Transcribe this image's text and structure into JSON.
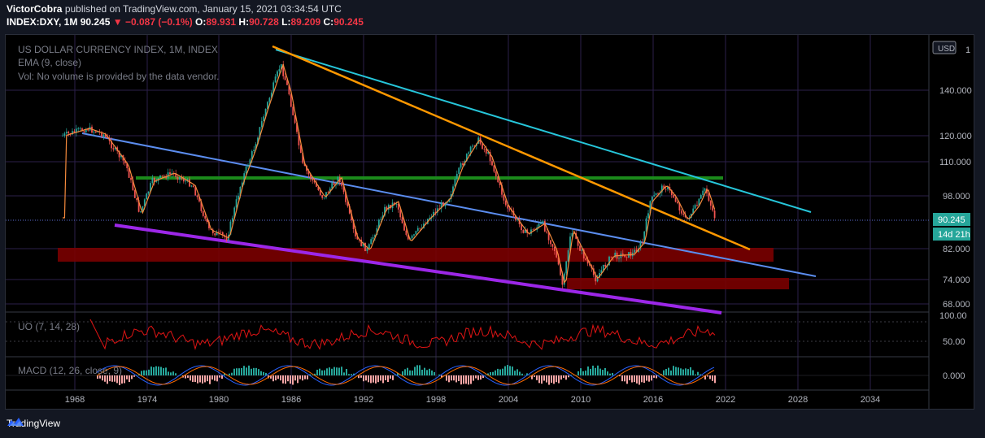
{
  "header": {
    "author": "VictorCobra",
    "published_text": "published on TradingView.com, January 15, 2021 03:34:54 UTC",
    "symbol": "INDEX:DXY, 1M",
    "last": "90.245",
    "change": "▼ −0.087 (−0.1%)",
    "o_label": "O:",
    "o_value": "89.931",
    "h_label": "H:",
    "h_value": "90.728",
    "l_label": "L:",
    "l_value": "89.209",
    "c_label": "C:",
    "c_value": "90.245"
  },
  "legend": {
    "title": "US DOLLAR CURRENCY INDEX, 1M, INDEX",
    "ema": "EMA (9, close)",
    "vol": "Vol: No volume is provided by the data vendor.",
    "uo": "UO (7, 14, 28)",
    "macd": "MACD (12, 26, close, 9)"
  },
  "price_axis": {
    "currency": "USD",
    "labels": [
      "140.000",
      "120.000",
      "110.000",
      "98.000",
      "82.000",
      "74.000",
      "68.000"
    ],
    "top_label": "1",
    "price_badge": "90.245",
    "countdown_badge": "14d 21h"
  },
  "uo_axis": {
    "labels": [
      "100.00",
      "50.00"
    ]
  },
  "macd_axis": {
    "labels": [
      "0.000"
    ]
  },
  "time_axis": {
    "labels": [
      "1968",
      "1974",
      "1980",
      "1986",
      "1992",
      "1998",
      "2004",
      "2010",
      "2016",
      "2022",
      "2028",
      "2034"
    ]
  },
  "colors": {
    "background": "#000000",
    "grid": "#2b1f4a",
    "price_line": "#e04040",
    "ema": "#f58a3c",
    "up_candle": "#26a69a",
    "down_candle": "#ef5350",
    "trend_cyan": "#26c6da",
    "trend_orange": "#ff9800",
    "trend_blue": "#5b8def",
    "trend_purple": "#9c27e8",
    "support_green": "#1b8a1b",
    "zone_red": "#7a0000",
    "uo_line": "#e01414",
    "macd_line": "#2962ff",
    "signal_line": "#ff6d00",
    "badge": "#26a69a"
  },
  "footer": {
    "brand": "TradingView"
  }
}
